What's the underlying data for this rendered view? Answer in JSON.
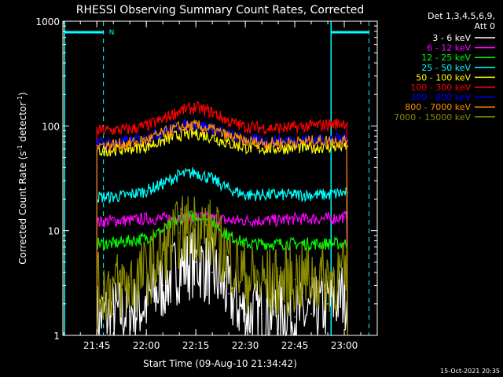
{
  "chart_data": {
    "type": "line",
    "title": "RHESSI Observing Summary Count Rates, Corrected",
    "xlabel": "Start Time (09-Aug-10 21:34:42)",
    "ylabel": "Corrected Count Rate (s",
    "ylabel_sup1": "-1",
    "ylabel_mid": " detector",
    "ylabel_sup2": "-1",
    "ylabel_end": ")",
    "y_scale": "log",
    "ylim": [
      1,
      1000
    ],
    "xlim": [
      "21:34:42",
      "23:10:00"
    ],
    "y_ticks": [
      "1",
      "10",
      "100",
      "1000"
    ],
    "x_ticks": [
      "21:45",
      "22:00",
      "22:15",
      "22:30",
      "22:45",
      "23:00"
    ],
    "legend_header": [
      "Det 1,3,4,5,6,9,",
      "Att 0"
    ],
    "legend_position": "right",
    "footer_date": "15-Oct-2021 20:35",
    "night_marker": "N",
    "series": [
      {
        "name": "3 - 6 keV",
        "color": "#ffffff",
        "x": [
          "21:45",
          "21:50",
          "21:55",
          "22:00",
          "22:05",
          "22:10",
          "22:15",
          "22:20",
          "22:25",
          "22:30",
          "22:35",
          "22:40",
          "22:45",
          "22:50",
          "22:55",
          "23:00",
          "23:01"
        ],
        "values": [
          1.5,
          1.6,
          1.7,
          2.0,
          3.0,
          4.5,
          5.0,
          4.0,
          2.5,
          1.6,
          1.6,
          1.8,
          1.5,
          1.6,
          2.0,
          2.5,
          2.5
        ]
      },
      {
        "name": "6 - 12 keV",
        "color": "#ff00ff",
        "x": [
          "21:45",
          "21:50",
          "21:55",
          "22:00",
          "22:05",
          "22:10",
          "22:15",
          "22:20",
          "22:25",
          "22:30",
          "22:35",
          "22:40",
          "22:45",
          "22:50",
          "22:55",
          "23:00",
          "23:01"
        ],
        "values": [
          12,
          12.5,
          12.5,
          13,
          13,
          13.5,
          13.5,
          13,
          12.5,
          12.5,
          12.5,
          12.5,
          13,
          13,
          13,
          13.5,
          13.5
        ]
      },
      {
        "name": "12 - 25 keV",
        "color": "#00ff00",
        "x": [
          "21:45",
          "21:50",
          "21:55",
          "22:00",
          "22:05",
          "22:10",
          "22:15",
          "22:20",
          "22:25",
          "22:30",
          "22:35",
          "22:40",
          "22:45",
          "22:50",
          "22:55",
          "23:00",
          "23:01"
        ],
        "values": [
          7.5,
          7.5,
          8,
          8.5,
          10,
          13,
          14,
          12,
          9,
          7.5,
          7.5,
          7.5,
          7.5,
          7.5,
          7.5,
          7.5,
          7.5
        ]
      },
      {
        "name": "25 - 50 keV",
        "color": "#00ffff",
        "x": [
          "21:45",
          "21:50",
          "21:55",
          "22:00",
          "22:05",
          "22:10",
          "22:15",
          "22:20",
          "22:25",
          "22:30",
          "22:35",
          "22:40",
          "22:45",
          "22:50",
          "22:55",
          "23:00",
          "23:01"
        ],
        "values": [
          21,
          21,
          22,
          24,
          28,
          34,
          36,
          31,
          25,
          22,
          22,
          22,
          22,
          22,
          22,
          23,
          23
        ]
      },
      {
        "name": "50 - 100 keV",
        "color": "#ffff00",
        "x": [
          "21:45",
          "21:50",
          "21:55",
          "22:00",
          "22:05",
          "22:10",
          "22:15",
          "22:20",
          "22:25",
          "22:30",
          "22:35",
          "22:40",
          "22:45",
          "22:50",
          "22:55",
          "23:00",
          "23:01"
        ],
        "values": [
          58,
          59,
          61,
          64,
          72,
          82,
          85,
          78,
          68,
          62,
          61,
          61,
          62,
          62,
          63,
          64,
          64
        ]
      },
      {
        "name": "100 - 300 keV",
        "color": "#ff0000",
        "x": [
          "21:45",
          "21:50",
          "21:55",
          "22:00",
          "22:05",
          "22:10",
          "22:15",
          "22:20",
          "22:25",
          "22:30",
          "22:35",
          "22:40",
          "22:45",
          "22:50",
          "22:55",
          "23:00",
          "23:01"
        ],
        "values": [
          90,
          91,
          93,
          100,
          115,
          140,
          150,
          135,
          110,
          98,
          96,
          95,
          97,
          100,
          103,
          107,
          107
        ]
      },
      {
        "name": "300 - 800 keV",
        "color": "#0000ff",
        "x": [
          "21:45",
          "21:50",
          "21:55",
          "22:00",
          "22:05",
          "22:10",
          "22:15",
          "22:20",
          "22:25",
          "22:30",
          "22:35",
          "22:40",
          "22:45",
          "22:50",
          "22:55",
          "23:00",
          "23:01"
        ],
        "values": [
          68,
          69,
          71,
          76,
          88,
          100,
          103,
          95,
          82,
          74,
          72,
          72,
          73,
          74,
          75,
          76,
          76
        ]
      },
      {
        "name": "800 - 7000 keV",
        "color": "#ff8c00",
        "x": [
          "21:45",
          "21:50",
          "21:55",
          "22:00",
          "22:05",
          "22:10",
          "22:15",
          "22:20",
          "22:25",
          "22:30",
          "22:35",
          "22:40",
          "22:45",
          "22:50",
          "22:55",
          "23:00",
          "23:01"
        ],
        "values": [
          65,
          66,
          68,
          73,
          85,
          97,
          100,
          92,
          79,
          71,
          69,
          69,
          70,
          71,
          72,
          73,
          73
        ]
      },
      {
        "name": "7000 - 15000 keV",
        "color": "#8b8b00",
        "x": [
          "21:45",
          "21:50",
          "21:55",
          "22:00",
          "22:05",
          "22:10",
          "22:15",
          "22:20",
          "22:25",
          "22:30",
          "22:35",
          "22:40",
          "22:45",
          "22:50",
          "22:55",
          "23:00",
          "23:01"
        ],
        "values": [
          2.8,
          2.9,
          3.1,
          4.0,
          6.0,
          9.5,
          11.5,
          9.0,
          5.5,
          3.6,
          3.2,
          3.2,
          3.4,
          3.5,
          3.6,
          3.6,
          3.6
        ]
      }
    ]
  }
}
